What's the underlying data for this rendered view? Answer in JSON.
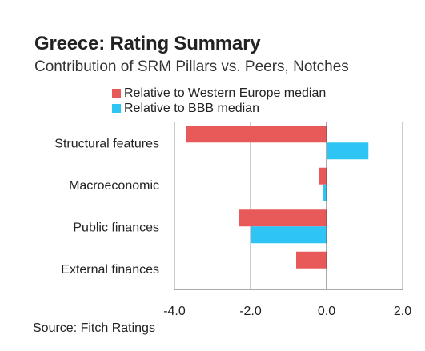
{
  "header": {
    "title": "Greece: Rating Summary",
    "subtitle": "Contribution of SRM Pillars vs. Peers, Notches"
  },
  "legend": {
    "items": [
      {
        "label": "Relative to Western Europe median",
        "color": "#e8595a"
      },
      {
        "label": "Relative to BBB median",
        "color": "#2ec5f5"
      }
    ]
  },
  "footer": {
    "source": "Source: Fitch Ratings"
  },
  "chart_data": {
    "type": "bar",
    "orientation": "horizontal",
    "title": "Greece: Rating Summary",
    "subtitle": "Contribution of SRM Pillars vs. Peers, Notches",
    "categories": [
      "Structural features",
      "Macroeconomic",
      "Public finances",
      "External finances"
    ],
    "series": [
      {
        "name": "Relative to Western Europe median",
        "color": "#e8595a",
        "values": [
          -3.7,
          -0.2,
          -2.3,
          -0.8
        ]
      },
      {
        "name": "Relative to BBB median",
        "color": "#2ec5f5",
        "values": [
          1.1,
          -0.1,
          -2.0,
          0.0
        ]
      }
    ],
    "xlim": [
      -4.0,
      2.0
    ],
    "xticks": [
      -4.0,
      -2.0,
      0.0,
      2.0
    ],
    "xtick_labels": [
      "-4.0",
      "-2.0",
      "0.0",
      "2.0"
    ],
    "gridlines": "vertical",
    "legend_position": "top",
    "source": "Source: Fitch Ratings"
  }
}
